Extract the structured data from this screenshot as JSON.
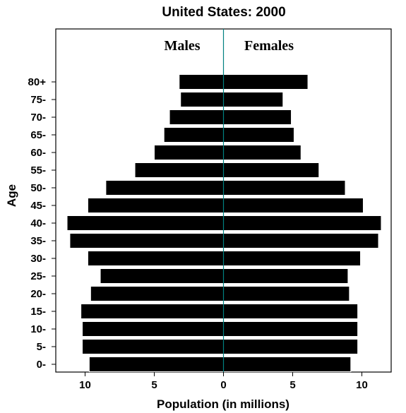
{
  "chart_data": {
    "type": "bar",
    "orientation": "horizontal",
    "title": "United States: 2000",
    "xlabel": "Population (in millions)",
    "ylabel": "Age",
    "side_labels": {
      "left": "Males",
      "right": "Females"
    },
    "categories": [
      "0-",
      "5-",
      "10-",
      "15-",
      "20-",
      "25-",
      "30-",
      "35-",
      "40-",
      "45-",
      "50-",
      "55-",
      "60-",
      "65-",
      "70-",
      "75-",
      "80+"
    ],
    "series": [
      {
        "name": "Males",
        "values": [
          9.7,
          10.2,
          10.2,
          10.3,
          9.6,
          8.9,
          9.8,
          11.1,
          11.3,
          9.8,
          8.5,
          6.4,
          5.0,
          4.3,
          3.9,
          3.1,
          3.2
        ]
      },
      {
        "name": "Females",
        "values": [
          9.2,
          9.7,
          9.7,
          9.7,
          9.1,
          9.0,
          9.9,
          11.2,
          11.4,
          10.1,
          8.8,
          6.9,
          5.6,
          5.1,
          4.9,
          4.3,
          6.1
        ]
      }
    ],
    "x_ticks": [
      "10",
      "5",
      "0",
      "5",
      "10"
    ],
    "xlim": [
      -12,
      12
    ],
    "grid": false,
    "colors": {
      "bar_fill": "#000000",
      "bar_edge": "#ffffff",
      "center_line": "#008080"
    }
  }
}
